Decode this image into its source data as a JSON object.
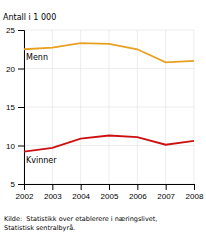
{
  "chart_data": {
    "type": "line",
    "ylabel": "Antall i 1 000",
    "source": "Kilde:  Statistikk over etablerere i næringslivet,\nStatistisk sentralbyrå.",
    "x": [
      2002,
      2003,
      2004,
      2005,
      2006,
      2007,
      2008
    ],
    "series": [
      {
        "name": "Menn",
        "color": "#e8a020",
        "values": [
          22.5,
          22.7,
          23.3,
          23.2,
          22.5,
          20.8,
          21.0
        ]
      },
      {
        "name": "Kvinner",
        "color": "#cc1010",
        "values": [
          9.2,
          9.7,
          10.9,
          11.3,
          11.1,
          10.1,
          10.6
        ]
      }
    ],
    "xlim": [
      2002,
      2008
    ],
    "xticks": [
      2002,
      2003,
      2004,
      2005,
      2006,
      2007,
      2008
    ],
    "ylim": [
      5,
      25
    ],
    "yticks": [
      5,
      10,
      15,
      20,
      25
    ],
    "grid": true
  }
}
